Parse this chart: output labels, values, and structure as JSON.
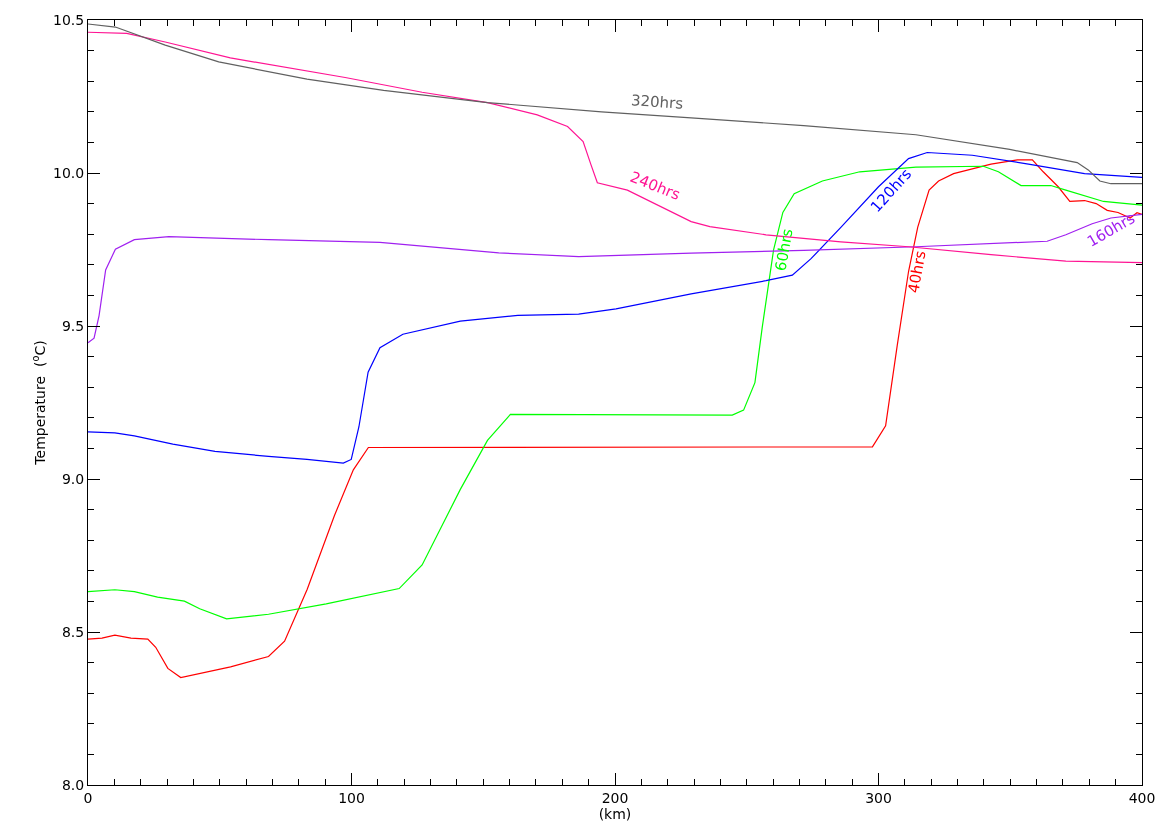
{
  "chart_data": {
    "type": "line",
    "xlabel": "(km)",
    "ylabel": "Temperature  ($^{o}$C)",
    "xlim": [
      0,
      400
    ],
    "xticks": [
      0,
      100,
      200,
      300,
      400
    ],
    "ylim": [
      8,
      10.5
    ],
    "yticks": [
      {
        "value": 8,
        "label": "8.0"
      },
      {
        "value": 8.5,
        "label": "8.5"
      },
      {
        "value": 9,
        "label": "9.0"
      },
      {
        "value": 9.5,
        "label": "9.5"
      },
      {
        "value": 10,
        "label": "10.0"
      },
      {
        "value": 10.5,
        "label": "10.5"
      }
    ],
    "grid": false,
    "legend": false,
    "marker": "none",
    "line_style": "solid",
    "series": [
      {
        "name": "40hrs",
        "color": "#ff0000",
        "x": [
          0,
          5.3,
          10.2,
          16.3,
          22.7,
          25.7,
          30.3,
          35.2,
          54.1,
          68.5,
          74.6,
          83.2,
          93.5,
          100.7,
          106.4,
          297.7,
          302.7,
          307.1,
          311.4,
          314.9,
          319.2,
          322.8,
          328.5,
          342.7,
          352.7,
          358.4,
          362.5,
          368.2,
          372.6,
          378.2,
          382.6,
          386.8,
          390.9,
          395.5,
          398.1,
          400
        ],
        "values": [
          8.477,
          8.48,
          8.49,
          8.48,
          8.477,
          8.45,
          8.381,
          8.351,
          8.386,
          8.42,
          8.47,
          8.64,
          8.88,
          9.03,
          9.103,
          9.105,
          9.174,
          9.436,
          9.678,
          9.823,
          9.944,
          9.974,
          9.998,
          10.029,
          10.043,
          10.043,
          10.004,
          9.955,
          9.907,
          9.91,
          9.9,
          9.878,
          9.871,
          9.853,
          9.87,
          9.865
        ]
      },
      {
        "name": "60hrs",
        "color": "#00ff00",
        "x": [
          0,
          10.2,
          17.6,
          26.4,
          36.6,
          42.4,
          52.6,
          68.5,
          90.4,
          118.1,
          126.8,
          141.3,
          151.6,
          160.3,
          244.5,
          248.8,
          253.1,
          255.9,
          260.2,
          263.7,
          268,
          278.7,
          292.9,
          314.2,
          339.8,
          345.5,
          354.1,
          365.4,
          371.1,
          385.4,
          400
        ],
        "values": [
          8.632,
          8.638,
          8.632,
          8.614,
          8.601,
          8.576,
          8.543,
          8.558,
          8.592,
          8.642,
          8.719,
          8.966,
          9.126,
          9.211,
          9.209,
          9.225,
          9.315,
          9.497,
          9.75,
          9.871,
          9.932,
          9.974,
          10.004,
          10.019,
          10.022,
          10.004,
          9.959,
          9.959,
          9.944,
          9.907,
          9.895
        ]
      },
      {
        "name": "120hrs",
        "color": "#0000ff",
        "x": [
          0,
          10.2,
          17.6,
          32.2,
          48.2,
          68.5,
          83.1,
          96.9,
          99.9,
          102.8,
          106.3,
          110.8,
          119.5,
          141.3,
          163.1,
          186.2,
          200.4,
          228.9,
          257.3,
          267.3,
          274.4,
          285.8,
          300,
          311.4,
          318.5,
          335.6,
          356.9,
          378.2,
          400
        ],
        "values": [
          9.154,
          9.151,
          9.141,
          9.114,
          9.09,
          9.074,
          9.064,
          9.052,
          9.064,
          9.17,
          9.349,
          9.429,
          9.473,
          9.516,
          9.535,
          9.539,
          9.556,
          9.605,
          9.648,
          9.666,
          9.72,
          9.823,
          9.955,
          10.047,
          10.067,
          10.058,
          10.029,
          9.998,
          9.986
        ]
      },
      {
        "name": "160hrs",
        "color": "#a020f0",
        "x": [
          0,
          2.3,
          4.2,
          6.7,
          10.4,
          17.6,
          30.7,
          68.6,
          110.8,
          155.9,
          186.2,
          228.9,
          271.6,
          314.2,
          364,
          371.1,
          381.1,
          388.2,
          400
        ],
        "values": [
          9.445,
          9.46,
          9.534,
          9.683,
          9.751,
          9.782,
          9.792,
          9.782,
          9.773,
          9.739,
          9.727,
          9.738,
          9.747,
          9.759,
          9.777,
          9.798,
          9.834,
          9.853,
          9.865
        ]
      },
      {
        "name": "240hrs",
        "color": "#ff1493",
        "x": [
          0,
          14.7,
          29.3,
          54,
          97.6,
          126.8,
          151.6,
          170.5,
          182,
          187.9,
          190.8,
          193.3,
          204.7,
          228.9,
          236,
          257.3,
          285.7,
          311.4,
          342.7,
          371.1,
          400
        ],
        "values": [
          10.46,
          10.456,
          10.428,
          10.376,
          10.312,
          10.264,
          10.23,
          10.19,
          10.152,
          10.103,
          10.029,
          9.968,
          9.944,
          9.841,
          9.825,
          9.798,
          9.775,
          9.759,
          9.733,
          9.712,
          9.707
        ]
      },
      {
        "name": "320hrs",
        "color": "#606060",
        "x": [
          0,
          10.4,
          29.3,
          49.6,
          83.1,
          112.2,
          151.6,
          194.9,
          228.9,
          271.6,
          314.2,
          349.8,
          375.4,
          379.6,
          384,
          388.2,
          400
        ],
        "values": [
          10.487,
          10.477,
          10.418,
          10.363,
          10.307,
          10.27,
          10.23,
          10.2,
          10.18,
          10.155,
          10.125,
          10.077,
          10.034,
          10.01,
          9.974,
          9.965,
          9.965
        ]
      }
    ]
  }
}
